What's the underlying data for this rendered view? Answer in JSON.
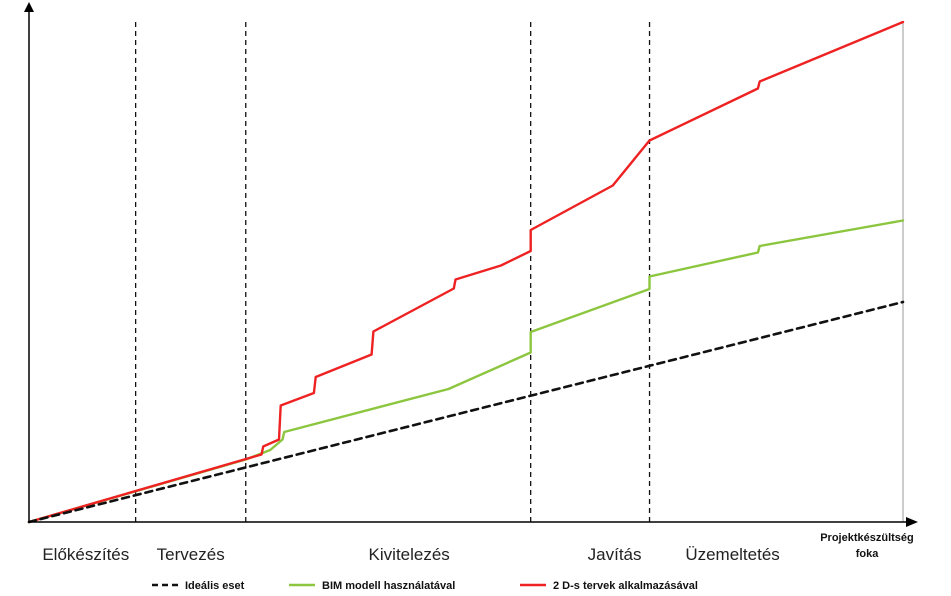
{
  "chart_data": {
    "type": "line",
    "xlabel": "Projektkészültség foka",
    "xlabel_lines": [
      "Projektkészültség",
      "foka"
    ],
    "ylabel": "",
    "xlim": [
      0,
      100
    ],
    "ylim": [
      0,
      100
    ],
    "grid": false,
    "legend": "bottom",
    "phases": [
      {
        "label": "Előkészítés",
        "center": 6.5
      },
      {
        "label": "Tervezés",
        "center": 18.5
      },
      {
        "label": "Kivitelezés",
        "center": 43.5
      },
      {
        "label": "Javítás",
        "center": 67
      },
      {
        "label": "Üzemeltetés",
        "center": 80.5
      }
    ],
    "phase_boundaries": [
      12.2,
      24.8,
      57.4,
      71
    ],
    "series": [
      {
        "name": "Ideális eset",
        "color": "#111111",
        "style": "dashed",
        "x": [
          0,
          100
        ],
        "y": [
          0,
          44
        ]
      },
      {
        "name": "BIM modell használatával",
        "color": "#8cc63f",
        "style": "solid",
        "x": [
          0,
          24.8,
          27.6,
          29.0,
          29.2,
          48.0,
          57.4,
          57.4,
          71,
          71,
          83.4,
          83.6,
          100
        ],
        "y": [
          0,
          12.5,
          14.4,
          16.5,
          18.0,
          26.6,
          33.9,
          38.0,
          46.6,
          49.1,
          53.9,
          55.2,
          60.3
        ]
      },
      {
        "name": "2 D-s tervek alkalmazásával",
        "color": "#ee2222",
        "style": "solid",
        "x": [
          0,
          26.6,
          26.8,
          28.6,
          28.8,
          32.6,
          32.8,
          39.2,
          39.4,
          48.6,
          48.8,
          54.0,
          57.4,
          57.4,
          66.8,
          71.0,
          83.4,
          83.6,
          100
        ],
        "y": [
          0,
          13.5,
          15.1,
          16.5,
          23.3,
          25.8,
          29.0,
          33.5,
          38.1,
          46.7,
          48.5,
          51.3,
          54.2,
          58.4,
          67.3,
          76.3,
          86.7,
          88.1,
          100
        ]
      }
    ]
  }
}
